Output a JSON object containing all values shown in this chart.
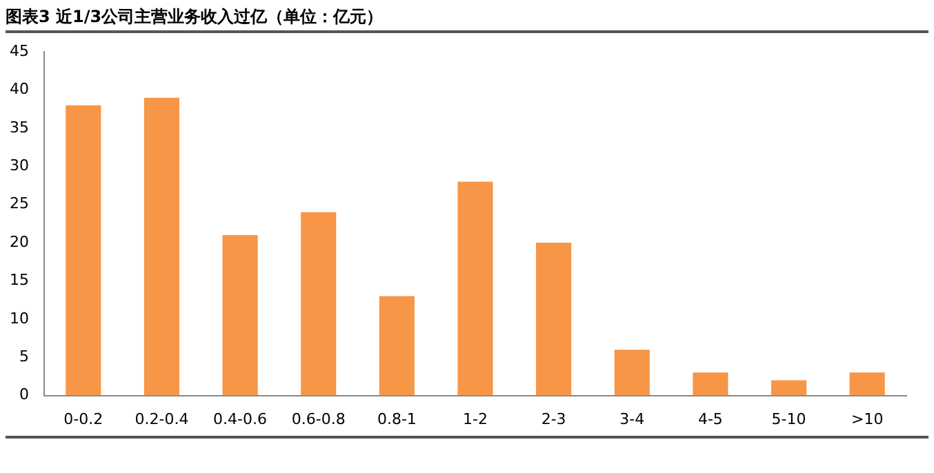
{
  "chart_data": {
    "type": "bar",
    "title": "图表3  近1/3公司主营业务收入过亿（单位：亿元）",
    "categories": [
      "0-0.2",
      "0.2-0.4",
      "0.4-0.6",
      "0.6-0.8",
      "0.8-1",
      "1-2",
      "2-3",
      "3-4",
      "4-5",
      "5-10",
      ">10"
    ],
    "values": [
      38,
      39,
      21,
      24,
      13,
      28,
      20,
      6,
      3,
      2,
      3
    ],
    "color": "#f79646",
    "ylim": [
      0,
      45
    ],
    "yticks": [
      0,
      5,
      10,
      15,
      20,
      25,
      30,
      35,
      40,
      45
    ],
    "grid": false,
    "legend": false
  }
}
